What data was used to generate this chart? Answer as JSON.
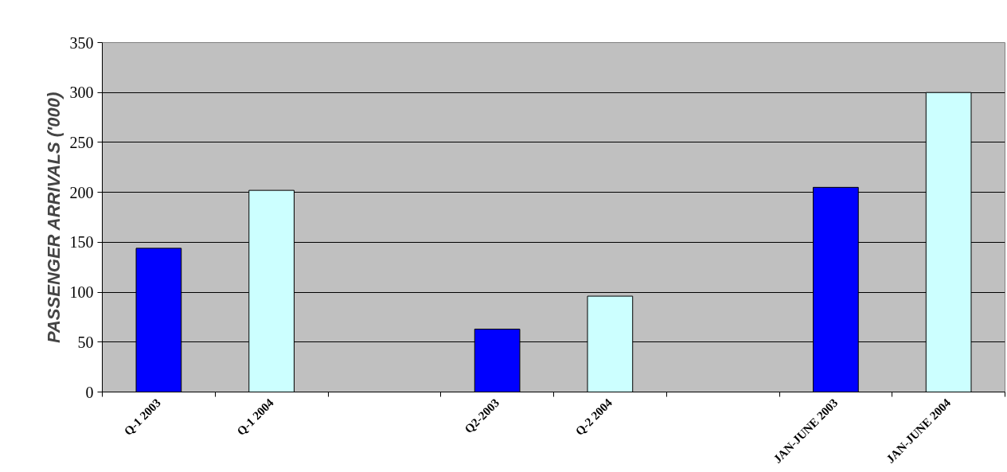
{
  "chart_data": {
    "type": "bar",
    "ylabel": "PASSENGER ARRIVALS ('000)",
    "categories": [
      "Q-1 2003",
      "Q-1 2004",
      null,
      "Q2-2003",
      "Q-2 2004",
      null,
      "JAN-JUNE 2003",
      "JAN-JUNE 2004"
    ],
    "values": [
      144,
      202,
      null,
      63,
      96,
      null,
      205,
      300
    ],
    "colors": [
      "#0000ff",
      "#ccffff",
      "#0000ff",
      "#0000ff",
      "#ccffff",
      "#ccffff",
      "#0000ff",
      "#ccffff"
    ],
    "ylim": [
      0,
      350
    ],
    "yticks": [
      0,
      50,
      100,
      150,
      200,
      250,
      300,
      350
    ],
    "grid": "y"
  }
}
